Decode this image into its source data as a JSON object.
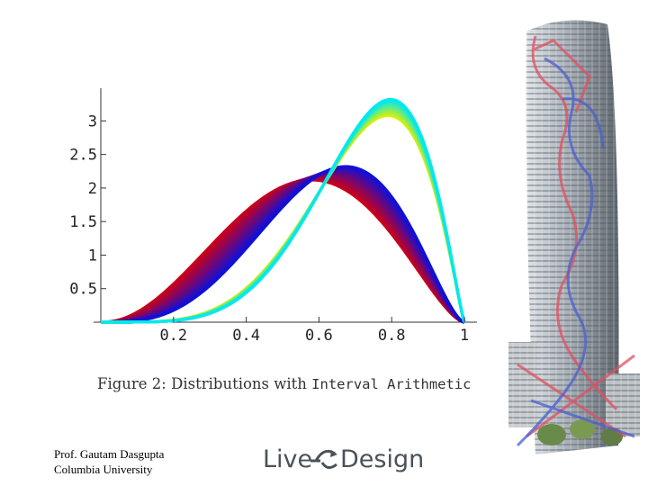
{
  "slide": {
    "author_name": "Prof. Gautam Dasgupta",
    "author_affiliation": "Columbia University",
    "logo": {
      "left_word": "Live",
      "right_word": "Design",
      "colors": {
        "text": "#4a5258",
        "arrow": "#4a5258"
      }
    },
    "building_image": {
      "description_icon": "skyscraper-with-flow-lines-icon",
      "colors": {
        "red_lines": "#e05060",
        "blue_lines": "#4a5fd0"
      }
    }
  },
  "chart_data": {
    "type": "area",
    "title": "",
    "caption_prefix": "Figure 2: Distributions with",
    "caption_mono": "Interval Arithmetic",
    "xlabel": "",
    "ylabel": "",
    "xlim": [
      0,
      1
    ],
    "ylim": [
      0,
      3.3
    ],
    "x_ticks": [
      0.2,
      0.4,
      0.6,
      0.8,
      1
    ],
    "x_tick_labels": [
      "0.2",
      "0.4",
      "0.6",
      "0.8",
      "1"
    ],
    "y_ticks": [
      0.5,
      1,
      1.5,
      2,
      2.5,
      3
    ],
    "y_tick_labels": [
      "0.5",
      "1",
      "1.5",
      "2",
      "2.5",
      "3"
    ],
    "grid": false,
    "legend": "none",
    "series": [
      {
        "family": "beta",
        "alpha_range": [
          3.2,
          4.3
        ],
        "beta_range": [
          2.6,
          2.6
        ],
        "count": 20,
        "colors": [
          "#cc0018",
          "#1010d8"
        ],
        "peak_range": [
          2.12,
          2.32
        ]
      },
      {
        "family": "beta",
        "alpha_range": [
          5.5,
          5.9
        ],
        "beta_range": [
          2.2,
          2.25
        ],
        "count": 20,
        "colors": [
          "#e0f000",
          "#00e8f0"
        ],
        "peak_range": [
          3.08,
          3.32
        ]
      }
    ]
  }
}
